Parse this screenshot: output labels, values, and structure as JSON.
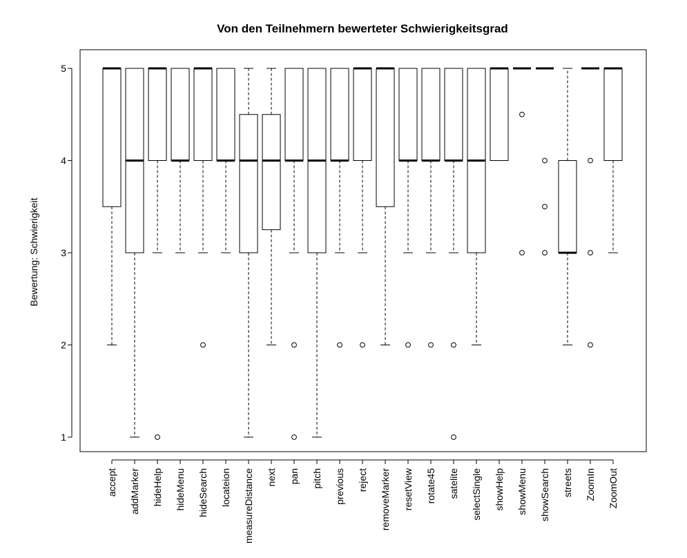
{
  "chart_data": {
    "type": "boxplot",
    "title": "Von den Teilnehmern bewerteter Schwierigkeitsgrad",
    "xlabel": "",
    "ylabel": "Bewertung: Schwierigkeit",
    "ylim": [
      1,
      5
    ],
    "yticks": [
      1,
      2,
      3,
      4,
      5
    ],
    "grid": false,
    "categories": [
      "accept",
      "addMarker",
      "hideHelp",
      "hideMenu",
      "hideSearch",
      "locateion",
      "measureDistance",
      "next",
      "pan",
      "pitch",
      "previous",
      "reject",
      "removeMarker",
      "resetView",
      "rotate45",
      "satelite",
      "selectSingle",
      "showHelp",
      "showMenu",
      "showSearch",
      "streets",
      "ZoomIn",
      "ZoomOut"
    ],
    "boxes": [
      {
        "min": 2,
        "q1": 3.5,
        "median": 5,
        "q3": 5,
        "max": 5,
        "outliers": []
      },
      {
        "min": 1,
        "q1": 3,
        "median": 4,
        "q3": 5,
        "max": 5,
        "outliers": []
      },
      {
        "min": 3,
        "q1": 4,
        "median": 5,
        "q3": 5,
        "max": 5,
        "outliers": [
          1
        ]
      },
      {
        "min": 3,
        "q1": 4,
        "median": 4,
        "q3": 5,
        "max": 5,
        "outliers": []
      },
      {
        "min": 3,
        "q1": 4,
        "median": 5,
        "q3": 5,
        "max": 5,
        "outliers": [
          2
        ]
      },
      {
        "min": 3,
        "q1": 4,
        "median": 4,
        "q3": 5,
        "max": 5,
        "outliers": []
      },
      {
        "min": 1,
        "q1": 3,
        "median": 4,
        "q3": 4.5,
        "max": 5,
        "outliers": []
      },
      {
        "min": 2,
        "q1": 3.25,
        "median": 4,
        "q3": 4.5,
        "max": 5,
        "outliers": []
      },
      {
        "min": 3,
        "q1": 4,
        "median": 4,
        "q3": 5,
        "max": 5,
        "outliers": [
          2,
          1
        ]
      },
      {
        "min": 1,
        "q1": 3,
        "median": 4,
        "q3": 5,
        "max": 5,
        "outliers": []
      },
      {
        "min": 3,
        "q1": 4,
        "median": 4,
        "q3": 5,
        "max": 5,
        "outliers": [
          2
        ]
      },
      {
        "min": 3,
        "q1": 4,
        "median": 5,
        "q3": 5,
        "max": 5,
        "outliers": [
          2
        ]
      },
      {
        "min": 2,
        "q1": 3.5,
        "median": 5,
        "q3": 5,
        "max": 5,
        "outliers": []
      },
      {
        "min": 3,
        "q1": 4,
        "median": 4,
        "q3": 5,
        "max": 5,
        "outliers": [
          2
        ]
      },
      {
        "min": 3,
        "q1": 4,
        "median": 4,
        "q3": 5,
        "max": 5,
        "outliers": [
          2
        ]
      },
      {
        "min": 3,
        "q1": 4,
        "median": 4,
        "q3": 5,
        "max": 5,
        "outliers": [
          2,
          1
        ]
      },
      {
        "min": 2,
        "q1": 3,
        "median": 4,
        "q3": 5,
        "max": 5,
        "outliers": []
      },
      {
        "min": 4,
        "q1": 4,
        "median": 5,
        "q3": 5,
        "max": 5,
        "outliers": []
      },
      {
        "min": 5,
        "q1": 5,
        "median": 5,
        "q3": 5,
        "max": 5,
        "outliers": [
          4.5,
          3
        ]
      },
      {
        "min": 5,
        "q1": 5,
        "median": 5,
        "q3": 5,
        "max": 5,
        "outliers": [
          4,
          3.5,
          3
        ]
      },
      {
        "min": 2,
        "q1": 3,
        "median": 3,
        "q3": 4,
        "max": 5,
        "outliers": []
      },
      {
        "min": 5,
        "q1": 5,
        "median": 5,
        "q3": 5,
        "max": 5,
        "outliers": [
          4,
          3,
          2
        ]
      },
      {
        "min": 3,
        "q1": 4,
        "median": 5,
        "q3": 5,
        "max": 5,
        "outliers": []
      }
    ]
  }
}
